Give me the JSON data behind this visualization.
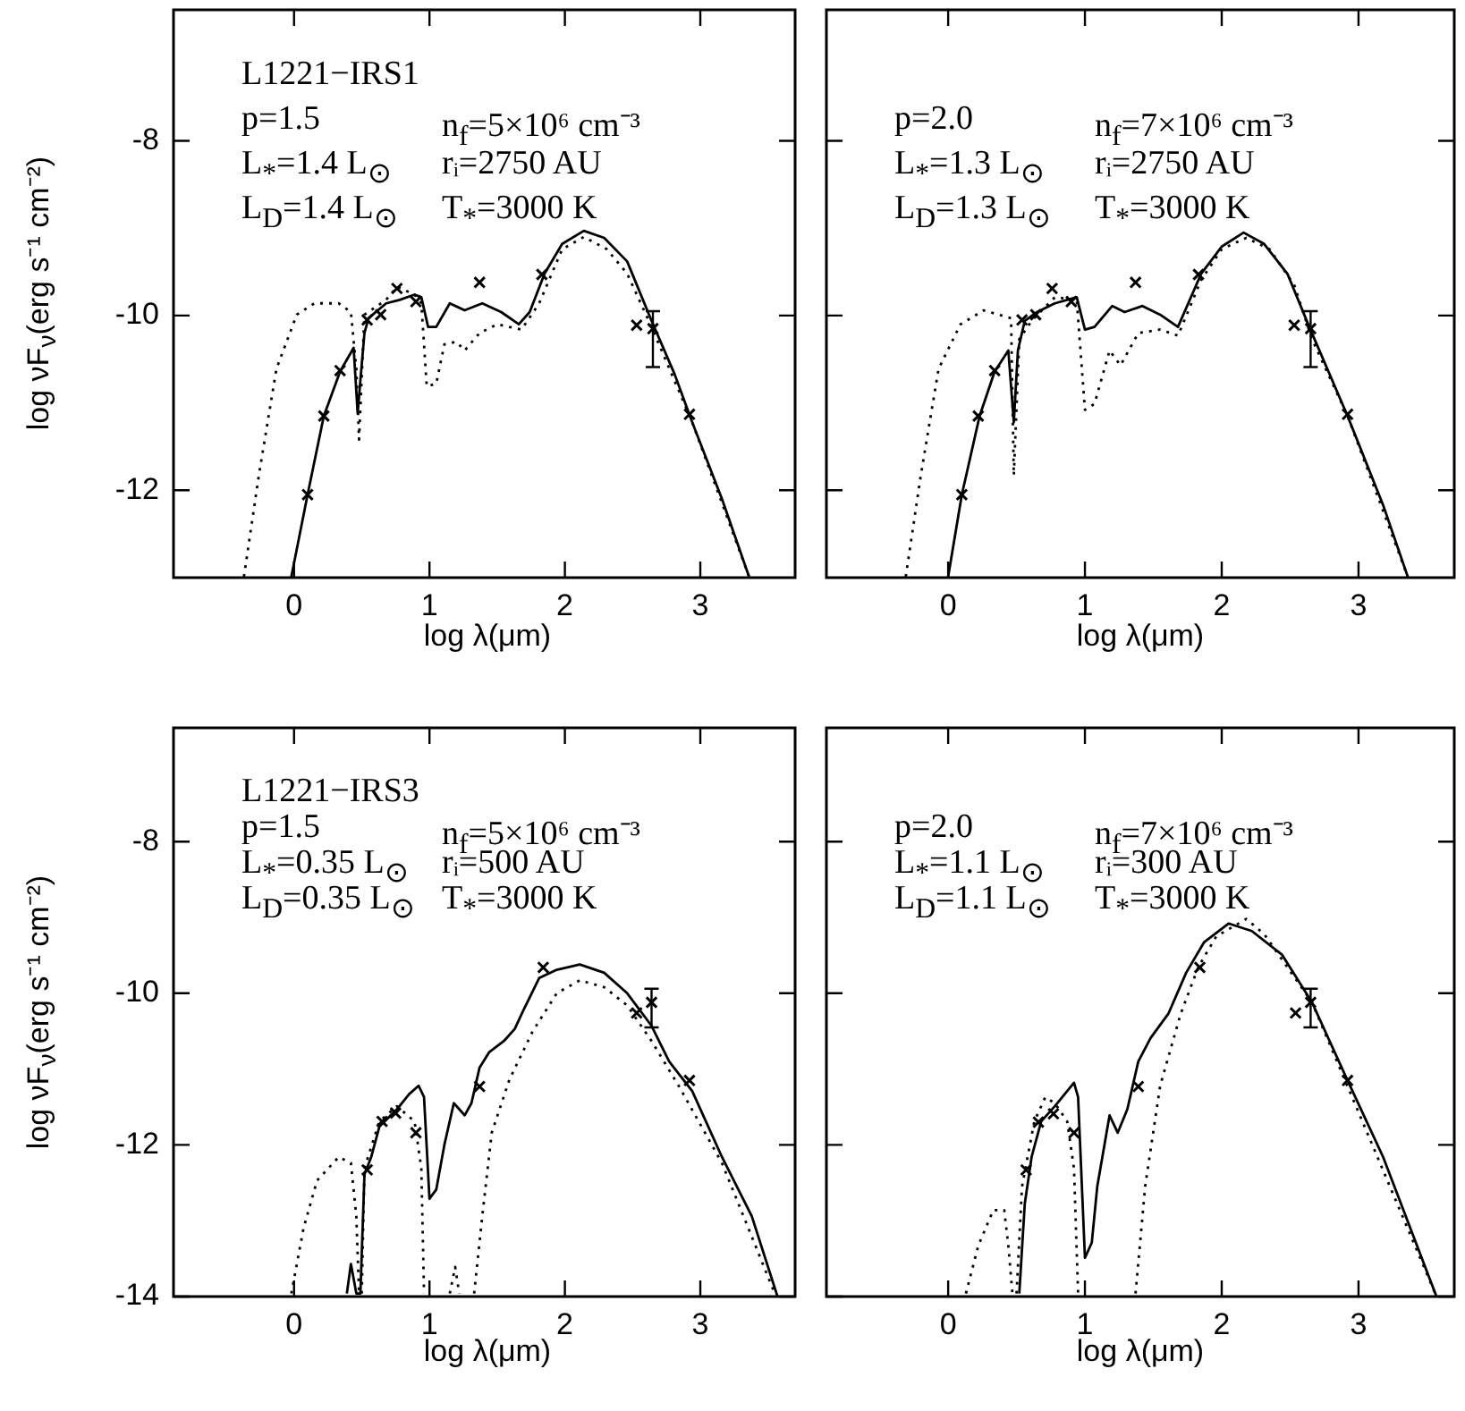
{
  "chart_data": [
    {
      "type": "line",
      "xlabel": "log λ(μm)",
      "ylabel": "log νF$_{ν}$(erg s⁻¹ cm⁻²)",
      "xlim": [
        -0.89,
        3.7
      ],
      "xticks": [
        0,
        1,
        2,
        3
      ],
      "ylim": [
        -13,
        -6.5
      ],
      "yticks": [
        -12,
        -10,
        -8
      ],
      "annotations": [
        "L1221−IRS1",
        "p=1.5",
        "n$_{f}$=5×10⁶ cm⁻³",
        "L$_{*}$=1.4 L$_{⊙}$",
        "rᵢ=2750 AU",
        "L$_{D}$=1.4 L$_{⊙}$",
        "T$_{*}$=3000 K"
      ],
      "series": [
        {
          "type": "line",
          "line_style": "solid",
          "color": "#000000",
          "x": [
            -0.02,
            0.1,
            0.22,
            0.34,
            0.44,
            0.47,
            0.49,
            0.52,
            0.55,
            0.68,
            0.78,
            0.89,
            0.94,
            0.99,
            1.05,
            1.15,
            1.26,
            1.39,
            1.53,
            1.66,
            1.74,
            1.85,
            1.98,
            2.14,
            2.29,
            2.46,
            2.64,
            2.81,
            2.94,
            3.16,
            3.36
          ],
          "values": [
            -12.99,
            -12.05,
            -11.15,
            -10.64,
            -10.37,
            -11.12,
            -10.74,
            -10.2,
            -10.03,
            -9.86,
            -9.82,
            -9.76,
            -9.79,
            -10.13,
            -10.13,
            -9.86,
            -9.94,
            -9.86,
            -9.96,
            -10.1,
            -9.96,
            -9.52,
            -9.18,
            -9.03,
            -9.11,
            -9.38,
            -10.06,
            -10.67,
            -11.22,
            -12.1,
            -12.99
          ]
        },
        {
          "type": "line",
          "line_style": "dotted",
          "color": "#000000",
          "x": [
            -0.37,
            -0.26,
            -0.13,
            0.02,
            0.15,
            0.33,
            0.42,
            0.46,
            0.48,
            0.52,
            0.68,
            0.76,
            0.89,
            0.94,
            0.98,
            1.05,
            1.11,
            1.2,
            1.26,
            1.37,
            1.5,
            1.68,
            1.81,
            1.98,
            2.14,
            2.31,
            2.46,
            2.64,
            2.94,
            3.36
          ],
          "values": [
            -12.99,
            -11.83,
            -10.61,
            -9.99,
            -9.86,
            -9.86,
            -9.96,
            -10.61,
            -11.42,
            -9.99,
            -9.82,
            -9.67,
            -9.76,
            -9.86,
            -10.81,
            -10.78,
            -10.33,
            -10.3,
            -10.4,
            -10.2,
            -10.1,
            -10.16,
            -9.86,
            -9.24,
            -9.1,
            -9.24,
            -9.52,
            -10.13,
            -11.22,
            -12.99
          ]
        },
        {
          "type": "scatter",
          "marker": "cross",
          "color": "#000000",
          "x": [
            0.1,
            0.22,
            0.34,
            0.54,
            0.64,
            0.76,
            0.9,
            1.37,
            1.83,
            2.53,
            2.65,
            2.92
          ],
          "values": [
            -12.05,
            -11.15,
            -10.63,
            -10.05,
            -9.99,
            -9.69,
            -9.84,
            -9.62,
            -9.53,
            -10.11,
            -10.15,
            -11.13
          ],
          "errors": [
            null,
            null,
            null,
            null,
            null,
            null,
            null,
            null,
            null,
            null,
            [
              -10.59,
              -9.95
            ],
            null
          ]
        }
      ]
    },
    {
      "type": "line",
      "xlabel": "log λ(μm)",
      "xlim": [
        -0.89,
        3.7
      ],
      "xticks": [
        0,
        1,
        2,
        3
      ],
      "ylim": [
        -13,
        -6.5
      ],
      "yticks": [
        -12,
        -10,
        -8
      ],
      "tick_labels": "x",
      "annotations": [
        "p=2.0",
        "n$_{f}$=7×10⁶ cm⁻³",
        "L$_{*}$=1.3 L$_{⊙}$",
        "rᵢ=2750 AU",
        "L$_{D}$=1.3 L$_{⊙}$",
        "T$_{*}$=3000 K"
      ],
      "series": [
        {
          "type": "line",
          "line_style": "solid",
          "color": "#000000",
          "x": [
            0.0,
            0.1,
            0.23,
            0.34,
            0.44,
            0.48,
            0.51,
            0.56,
            0.65,
            0.78,
            0.94,
            1.0,
            1.07,
            1.2,
            1.29,
            1.42,
            1.55,
            1.68,
            1.85,
            2.0,
            2.16,
            2.31,
            2.48,
            2.64,
            2.92,
            3.18,
            3.36
          ],
          "values": [
            -12.99,
            -12.05,
            -11.15,
            -10.64,
            -10.4,
            -11.22,
            -10.4,
            -10.06,
            -9.96,
            -9.86,
            -9.79,
            -10.16,
            -10.13,
            -9.89,
            -9.96,
            -9.89,
            -9.99,
            -10.13,
            -9.52,
            -9.21,
            -9.05,
            -9.18,
            -9.52,
            -10.13,
            -11.15,
            -12.17,
            -12.99
          ]
        },
        {
          "type": "line",
          "line_style": "dotted",
          "color": "#000000",
          "x": [
            -0.31,
            -0.2,
            -0.07,
            0.09,
            0.26,
            0.46,
            0.48,
            0.52,
            0.61,
            0.78,
            0.94,
            1.0,
            1.07,
            1.18,
            1.26,
            1.39,
            1.55,
            1.68,
            1.85,
            2.0,
            2.18,
            2.35,
            2.53,
            2.66,
            2.92,
            3.36
          ],
          "values": [
            -12.99,
            -11.83,
            -10.61,
            -10.1,
            -9.94,
            -10.03,
            -11.83,
            -10.27,
            -10.06,
            -9.79,
            -9.82,
            -11.08,
            -11.01,
            -10.4,
            -10.57,
            -10.2,
            -10.16,
            -10.23,
            -9.59,
            -9.24,
            -9.11,
            -9.24,
            -9.65,
            -10.27,
            -11.15,
            -12.99
          ]
        },
        {
          "type": "scatter",
          "marker": "cross",
          "color": "#000000",
          "x": [
            0.1,
            0.22,
            0.34,
            0.54,
            0.64,
            0.76,
            0.9,
            1.37,
            1.83,
            2.53,
            2.65,
            2.92
          ],
          "values": [
            -12.05,
            -11.15,
            -10.63,
            -10.05,
            -9.99,
            -9.69,
            -9.84,
            -9.62,
            -9.53,
            -10.11,
            -10.15,
            -11.13
          ],
          "errors": [
            null,
            null,
            null,
            null,
            null,
            null,
            null,
            null,
            null,
            null,
            [
              -10.59,
              -9.95
            ],
            null
          ]
        }
      ]
    },
    {
      "type": "line",
      "xlabel": "log λ(μm)",
      "ylabel": "log νF$_{ν}$(erg s⁻¹ cm⁻²)",
      "xlim": [
        -0.89,
        3.7
      ],
      "xticks": [
        0,
        1,
        2,
        3
      ],
      "ylim": [
        -14,
        -6.5
      ],
      "yticks": [
        -14,
        -12,
        -10,
        -8
      ],
      "annotations": [
        "L1221−IRS3",
        "p=1.5",
        "n$_{f}$=5×10⁶ cm⁻³",
        "L$_{*}$=0.35 L$_{⊙}$",
        "rᵢ=500 AU",
        "L$_{D}$=0.35 L$_{⊙}$",
        "T$_{*}$=3000 K"
      ],
      "series": [
        {
          "type": "line",
          "line_style": "solid",
          "color": "#000000",
          "x": [
            0.39,
            0.42,
            0.46,
            0.49,
            0.52,
            0.57,
            0.63,
            0.76,
            0.85,
            0.92,
            0.96,
            1.0,
            1.05,
            1.11,
            1.18,
            1.22,
            1.26,
            1.31,
            1.37,
            1.44,
            1.55,
            1.63,
            1.7,
            1.81,
            1.94,
            2.11,
            2.29,
            2.46,
            2.64,
            2.77,
            2.94,
            3.16,
            3.38,
            3.57
          ],
          "values": [
            -13.96,
            -13.57,
            -13.96,
            -13.96,
            -12.39,
            -12.16,
            -11.76,
            -11.53,
            -11.33,
            -11.22,
            -11.37,
            -12.71,
            -12.59,
            -12.0,
            -11.45,
            -11.53,
            -11.61,
            -11.45,
            -10.98,
            -10.78,
            -10.63,
            -10.47,
            -10.2,
            -9.8,
            -9.69,
            -9.62,
            -9.73,
            -10.0,
            -10.43,
            -10.9,
            -11.29,
            -12.16,
            -12.94,
            -14.0
          ]
        },
        {
          "type": "line",
          "line_style": "dotted",
          "color": "#000000",
          "x": [
            -0.02,
            0.07,
            0.17,
            0.33,
            0.42,
            0.46,
            0.48,
            null,
            0.5,
            0.52,
            0.63,
            0.76,
            0.89,
            0.94,
            0.96,
            null,
            1.15,
            1.19,
            1.22,
            null,
            1.33,
            1.39,
            1.46,
            1.59,
            1.76,
            1.94,
            2.11,
            2.29,
            2.46,
            2.64,
            2.85,
            3.16,
            3.55
          ],
          "values": [
            -13.96,
            -13.1,
            -12.47,
            -12.16,
            -12.24,
            -12.94,
            -13.96,
            null,
            -13.96,
            -12.31,
            -11.69,
            -11.49,
            -11.69,
            -12.31,
            -13.96,
            null,
            -13.96,
            -13.61,
            -13.96,
            null,
            -13.96,
            -12.94,
            -11.84,
            -11.14,
            -10.51,
            -10.0,
            -9.83,
            -9.92,
            -10.16,
            -10.63,
            -11.25,
            -12.24,
            -13.96
          ]
        },
        {
          "type": "scatter",
          "marker": "cross",
          "color": "#000000",
          "x": [
            0.54,
            0.65,
            0.75,
            0.9,
            1.37,
            1.84,
            2.53,
            2.64,
            2.92
          ],
          "values": [
            -12.33,
            -11.69,
            -11.58,
            -11.84,
            -11.23,
            -9.66,
            -10.26,
            -10.12,
            -11.15
          ],
          "errors": [
            null,
            null,
            null,
            null,
            null,
            null,
            null,
            [
              -10.45,
              -9.94
            ],
            null
          ]
        }
      ]
    },
    {
      "type": "line",
      "xlabel": "log λ(μm)",
      "xlim": [
        -0.89,
        3.7
      ],
      "xticks": [
        0,
        1,
        2,
        3
      ],
      "ylim": [
        -14,
        -6.5
      ],
      "yticks": [
        -14,
        -12,
        -10,
        -8
      ],
      "tick_labels": "x",
      "annotations": [
        "p=2.0",
        "n$_{f}$=7×10⁶ cm⁻³",
        "L$_{*}$=1.1 L$_{⊙}$",
        "rᵢ=300 AU",
        "L$_{D}$=1.1 L$_{⊙}$",
        "T$_{*}$=3000 K"
      ],
      "series": [
        {
          "type": "line",
          "line_style": "solid",
          "color": "#000000",
          "x": [
            0.52,
            0.56,
            0.61,
            0.68,
            0.78,
            0.92,
            0.95,
            1.0,
            1.05,
            1.09,
            1.18,
            1.24,
            1.31,
            1.39,
            1.48,
            1.61,
            1.74,
            1.87,
            2.05,
            2.22,
            2.44,
            2.66,
            2.92,
            3.18,
            3.57
          ],
          "values": [
            -13.96,
            -12.78,
            -12.16,
            -11.69,
            -11.49,
            -11.18,
            -11.37,
            -13.49,
            -13.29,
            -12.55,
            -11.61,
            -11.84,
            -11.53,
            -10.9,
            -10.59,
            -10.27,
            -9.73,
            -9.33,
            -9.08,
            -9.18,
            -9.49,
            -10.12,
            -11.15,
            -12.16,
            -14.0
          ]
        },
        {
          "type": "line",
          "line_style": "dotted",
          "color": "#000000",
          "x": [
            0.13,
            0.22,
            0.33,
            0.41,
            0.44,
            0.47,
            null,
            0.5,
            0.54,
            0.63,
            0.71,
            0.78,
            0.87,
            0.92,
            0.95,
            null,
            1.37,
            1.44,
            1.55,
            1.7,
            1.83,
            1.96,
            2.18,
            2.31,
            2.66,
            3.57
          ],
          "values": [
            -13.96,
            -13.33,
            -12.86,
            -12.86,
            -13.33,
            -13.96,
            null,
            -13.96,
            -12.55,
            -11.69,
            -11.37,
            -11.45,
            -11.69,
            -12.31,
            -13.96,
            null,
            -13.96,
            -12.55,
            -11.22,
            -10.27,
            -9.65,
            -9.25,
            -9.02,
            -9.22,
            -10.12,
            -14.0
          ]
        },
        {
          "type": "scatter",
          "marker": "cross",
          "color": "#000000",
          "x": [
            0.57,
            0.66,
            0.77,
            0.92,
            1.39,
            1.84,
            2.54,
            2.65,
            2.92
          ],
          "values": [
            -12.33,
            -11.7,
            -11.59,
            -11.84,
            -11.23,
            -9.66,
            -10.26,
            -10.12,
            -11.15
          ],
          "errors": [
            null,
            null,
            null,
            null,
            null,
            null,
            null,
            [
              -10.45,
              -9.94
            ],
            null
          ]
        }
      ]
    }
  ]
}
